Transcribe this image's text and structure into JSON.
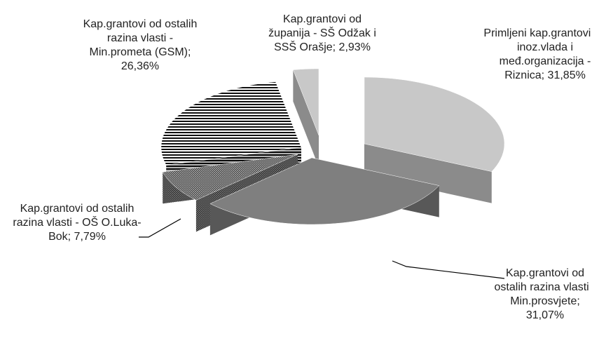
{
  "chart_data": {
    "type": "pie3d",
    "categories": [
      "Primljeni kap.grantovi od inoz.vlada i međ.organizacija - Riznica;",
      "Kap.grantovi od ostalih razina vlasti - Min.prosvjete;",
      "Kap.grantovi od ostalih razina vlasti - OŠ O.Luka-Bok;",
      "Kap.grantovi od ostalih razina vlasti - Min.prometa (GSM);",
      "Kap.grantovi od županija - SŠ Odžak i SSŠ Orašje;"
    ],
    "values": [
      31.85,
      31.07,
      7.79,
      26.36,
      2.93
    ],
    "value_labels": [
      "31,85%",
      "31,07%",
      "7,79%",
      "26,36%",
      "2,93%"
    ],
    "colors": [
      "#c8c8c8",
      "#7f7f7f",
      "#3c3c3c",
      "#555555",
      "#c8c8c8"
    ],
    "fill_patterns": [
      null,
      null,
      "crosshatch",
      "horizontal-stripes",
      null
    ]
  }
}
